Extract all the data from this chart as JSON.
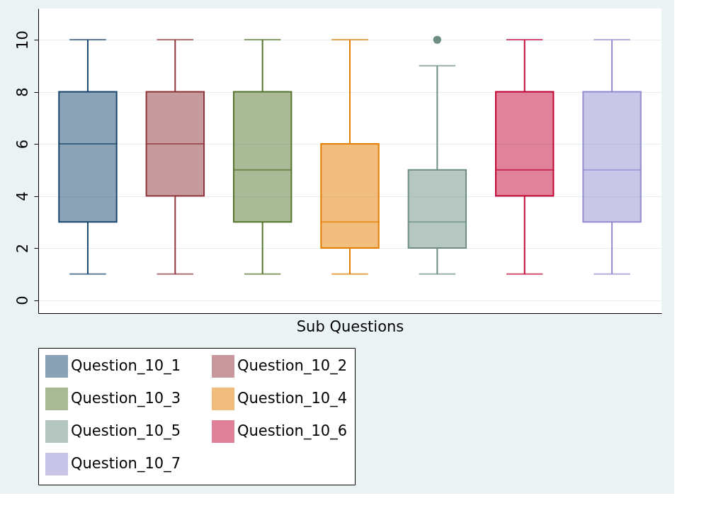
{
  "chart_data": {
    "type": "box",
    "xlabel": "Sub Questions",
    "categories": [
      null
    ],
    "ylim": [
      -0.5,
      11.2
    ],
    "yticks": [
      0,
      2,
      4,
      6,
      8,
      10
    ],
    "grid": "y",
    "legend": "bottom",
    "series": [
      {
        "name": "Question_10_1",
        "color": "#1a476f",
        "boxes": [
          {
            "low": 1,
            "q1": 3,
            "median": 6,
            "q3": 8,
            "high": 10
          }
        ]
      },
      {
        "name": "Question_10_2",
        "color": "#90353b",
        "boxes": [
          {
            "low": 1,
            "q1": 4,
            "median": 6,
            "q3": 8,
            "high": 10
          }
        ]
      },
      {
        "name": "Question_10_3",
        "color": "#55752f",
        "boxes": [
          {
            "low": 1,
            "q1": 3,
            "median": 5,
            "q3": 8,
            "high": 10
          }
        ]
      },
      {
        "name": "Question_10_4",
        "color": "#e37e00",
        "boxes": [
          {
            "low": 1,
            "q1": 2,
            "median": 3,
            "q3": 6,
            "high": 10
          }
        ]
      },
      {
        "name": "Question_10_5",
        "color": "#6e8e84",
        "boxes": [
          {
            "low": 1,
            "q1": 2,
            "median": 3,
            "q3": 5,
            "high": 9,
            "outliers": [
              10
            ]
          }
        ]
      },
      {
        "name": "Question_10_6",
        "color": "#c10534",
        "boxes": [
          {
            "low": 1,
            "q1": 4,
            "median": 5,
            "q3": 8,
            "high": 10
          }
        ]
      },
      {
        "name": "Question_10_7",
        "color": "#938dd2",
        "boxes": [
          {
            "low": 1,
            "q1": 3,
            "median": 5,
            "q3": 8,
            "high": 10
          }
        ]
      }
    ]
  }
}
